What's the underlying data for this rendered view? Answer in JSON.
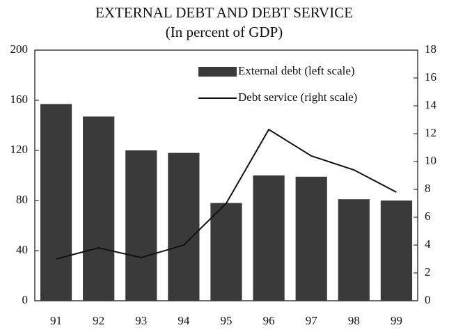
{
  "chart_data": {
    "type": "bar-line",
    "title": "EXTERNAL DEBT AND DEBT SERVICE",
    "subtitle": "(In percent of GDP)",
    "categories": [
      "91",
      "92",
      "93",
      "94",
      "95",
      "96",
      "97",
      "98",
      "99"
    ],
    "series": [
      {
        "name": "External debt (left scale)",
        "type": "bar",
        "color": "#3a3a3a",
        "values": [
          157,
          147,
          120,
          118,
          78,
          100,
          99,
          81,
          80
        ]
      },
      {
        "name": "Debt service (right scale)",
        "type": "line",
        "axis": "y2",
        "color": "#111111",
        "values": [
          3.0,
          3.8,
          3.1,
          4.0,
          7.0,
          12.3,
          10.4,
          9.4,
          7.8
        ]
      }
    ],
    "ylim": [
      0,
      200
    ],
    "yticks": [
      0,
      40,
      80,
      120,
      160,
      200
    ],
    "y2lim": [
      0,
      18
    ],
    "y2ticks": [
      0,
      2,
      4,
      6,
      8,
      10,
      12,
      14,
      16,
      18
    ],
    "legend": "top-right"
  }
}
